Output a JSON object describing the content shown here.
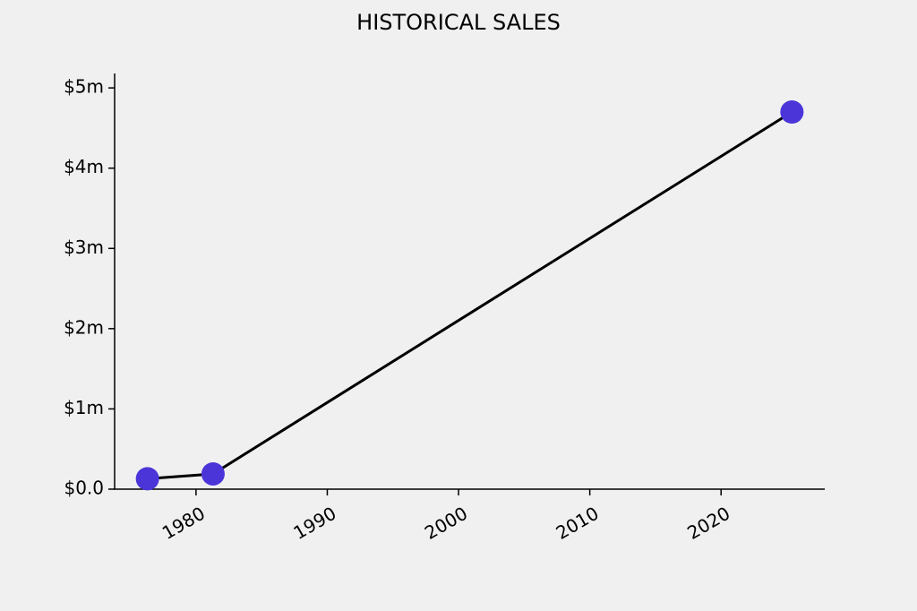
{
  "chart_data": {
    "type": "line",
    "title": "HISTORICAL SALES",
    "x": [
      1976.3,
      1981.3,
      2025.4
    ],
    "values": [
      130000,
      190000,
      4700000
    ],
    "color": "#4b35d9",
    "line_color": "#000000",
    "xlim": [
      1973.8,
      2027.9
    ],
    "xticks": [
      1980,
      1990,
      2000,
      2010,
      2020
    ],
    "ylim": [
      0,
      5180000
    ],
    "yticks": [
      {
        "value": 0,
        "label": "$0.0"
      },
      {
        "value": 1000000,
        "label": "$1m"
      },
      {
        "value": 2000000,
        "label": "$2m"
      },
      {
        "value": 3000000,
        "label": "$3m"
      },
      {
        "value": 4000000,
        "label": "$4m"
      },
      {
        "value": 5000000,
        "label": "$5m"
      }
    ],
    "grid": false
  }
}
